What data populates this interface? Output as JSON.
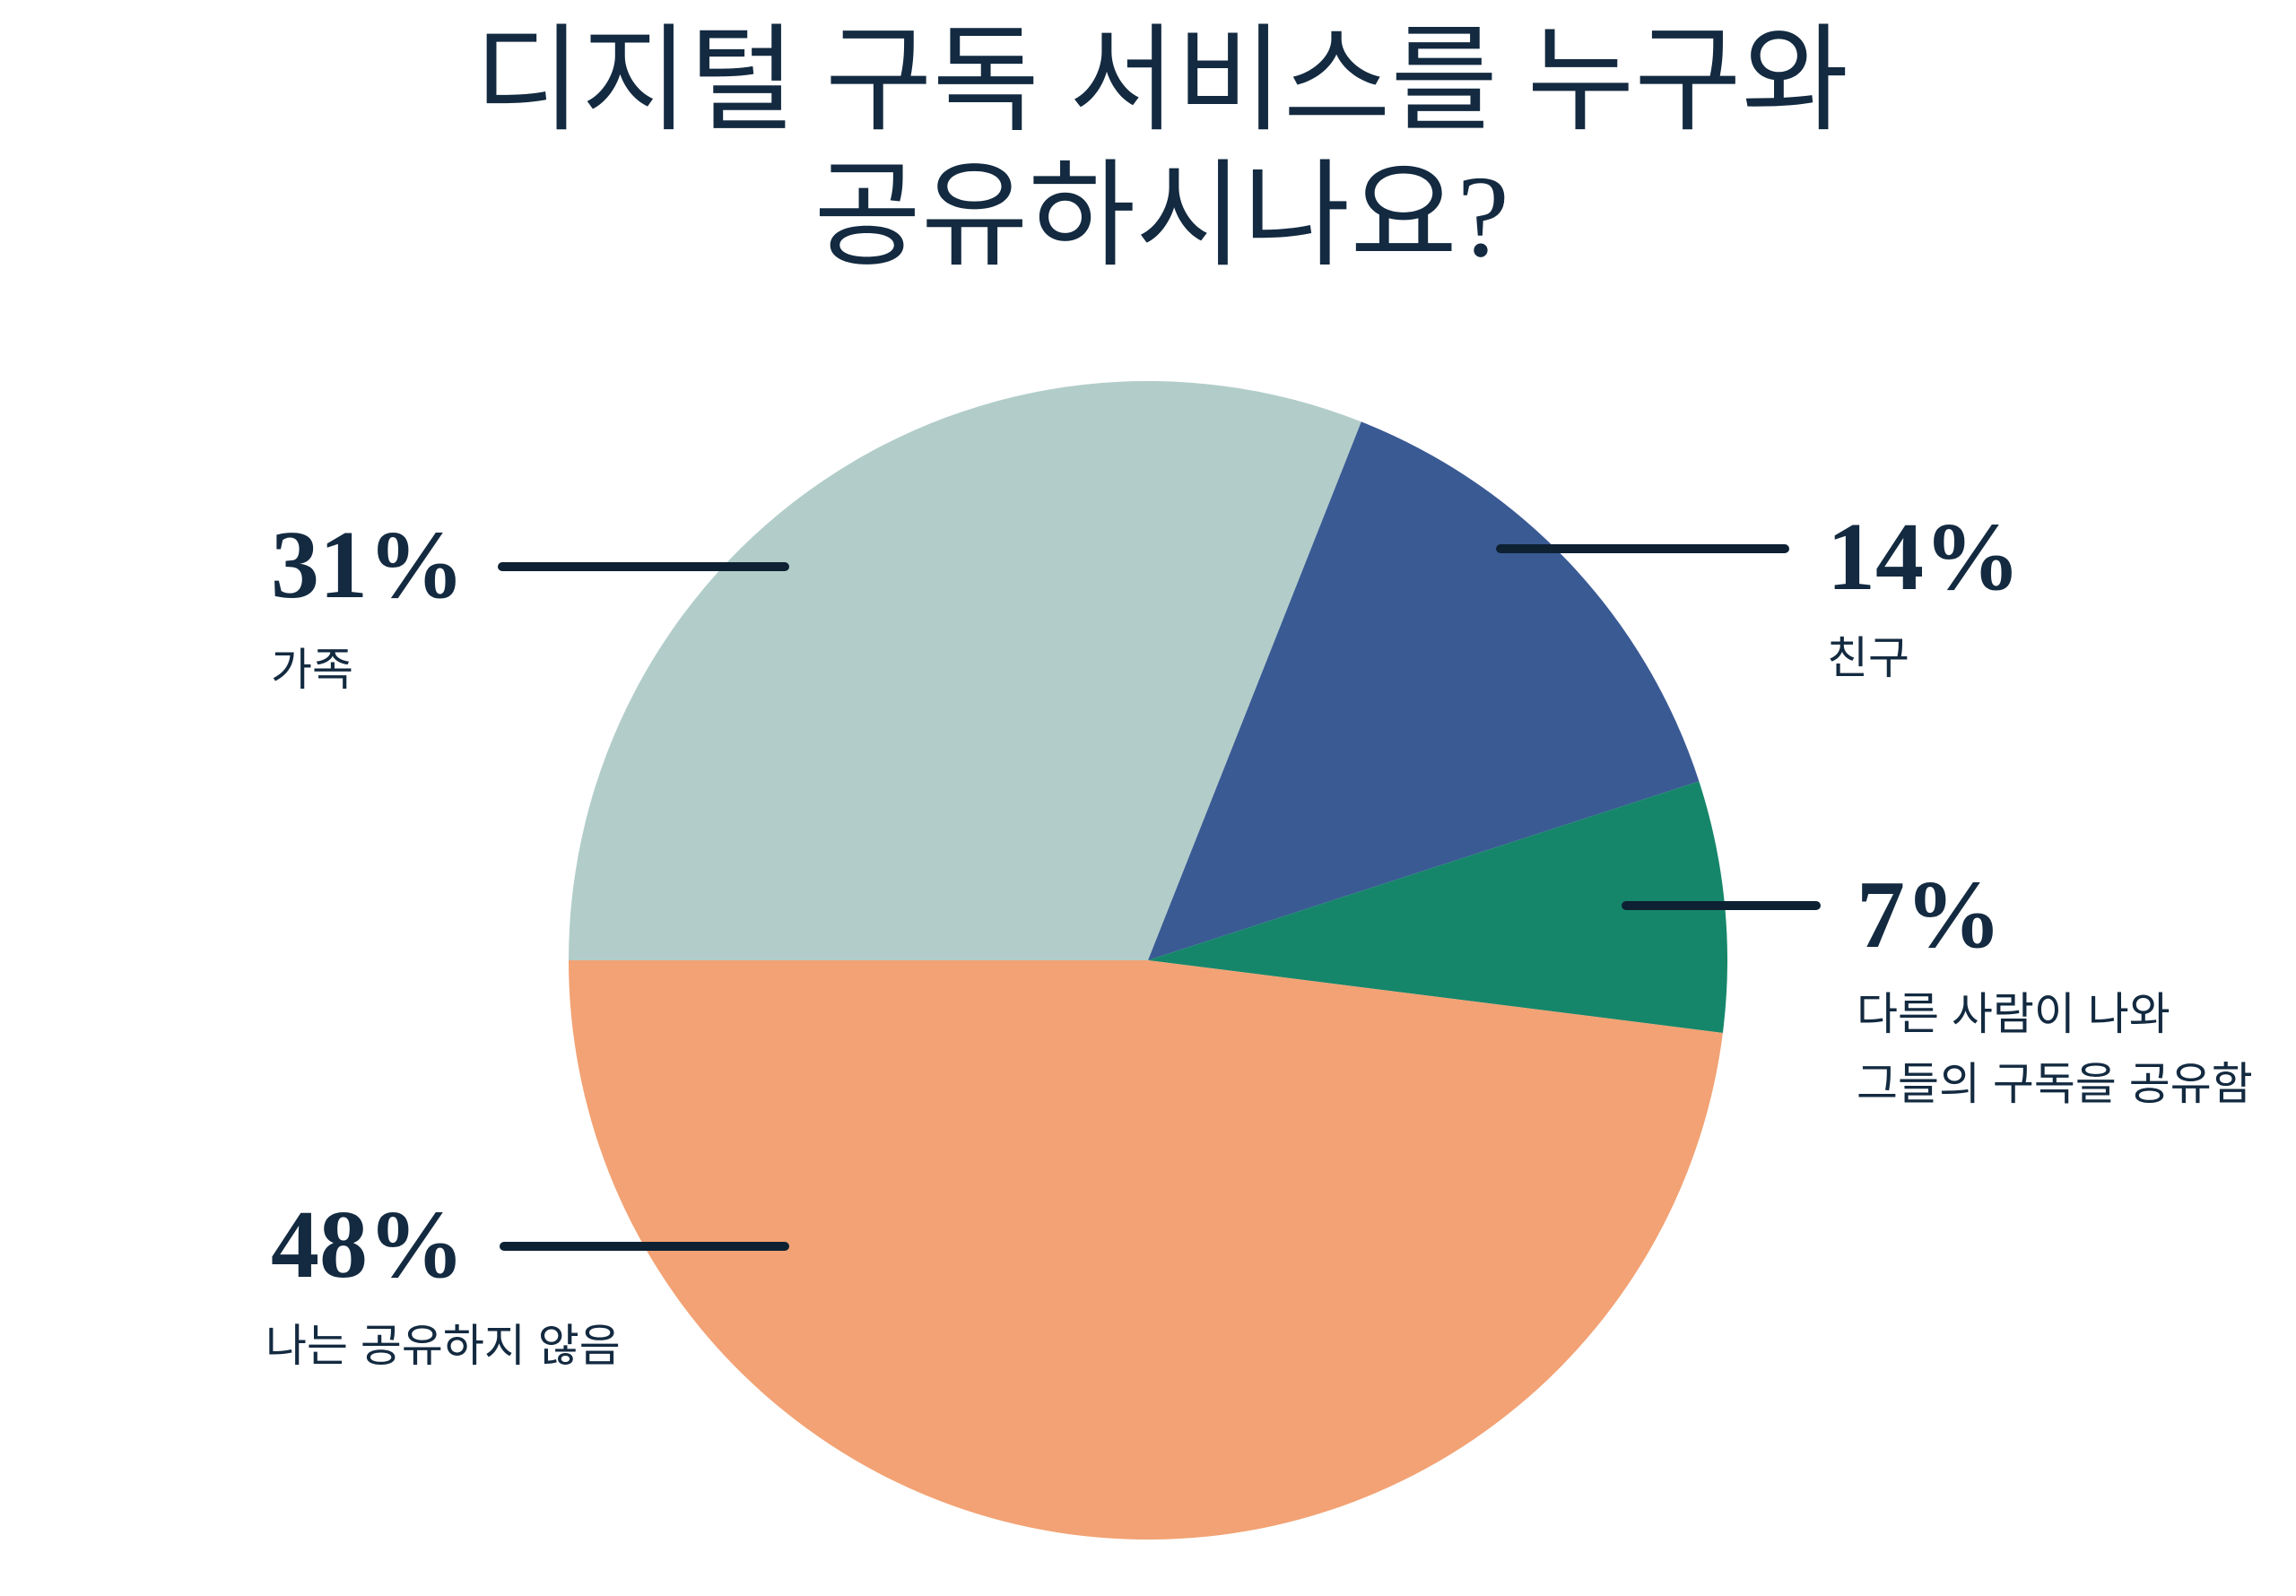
{
  "title": {
    "lines": [
      "디지털 구독 서비스를 누구와",
      "공유하시나요?"
    ],
    "full": "디지털 구독 서비스를 누구와 공유하시나요?"
  },
  "colors": {
    "background": "#ffffff",
    "text": "#132a40",
    "leader_line": "#0d2133"
  },
  "chart_data": {
    "type": "pie",
    "title": "디지털 구독 서비스를 누구와 공유하시나요?",
    "total": 100,
    "unit": "%",
    "start_angle_deg": 270,
    "direction": "clockwise",
    "legend_position": "callout-labels",
    "slices": [
      {
        "id": "family",
        "label": "가족",
        "value": 31,
        "display": "31%",
        "color": "#b2cdc9",
        "callout_side": "left"
      },
      {
        "id": "friends",
        "label": "친구",
        "value": 14,
        "display": "14%",
        "color": "#3a5a94",
        "callout_side": "right"
      },
      {
        "id": "others-share-with-me",
        "label": "다른 사람이 나와 그들의 구독을 공유함",
        "label_lines": [
          "다른 사람이 나와",
          "그들의 구독을 공유함"
        ],
        "value": 7,
        "display": "7%",
        "color": "#16866a",
        "callout_side": "right"
      },
      {
        "id": "do-not-share",
        "label": "나는 공유하지 않음",
        "value": 48,
        "display": "48%",
        "color": "#f2a274",
        "callout_side": "left"
      }
    ]
  }
}
